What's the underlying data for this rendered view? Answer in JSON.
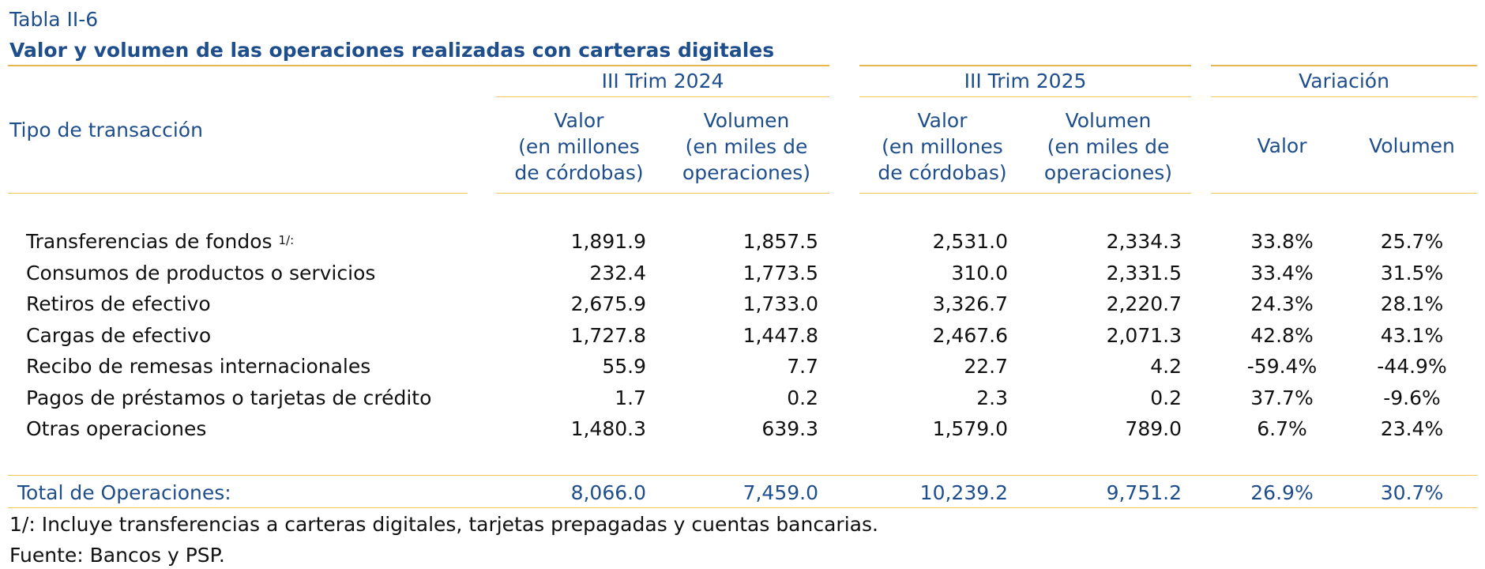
{
  "table": {
    "label": "Tabla II-6",
    "title": "Valor y volumen de las operaciones realizadas con carteras digitales",
    "row_header": "Tipo de transacción",
    "groups": [
      "III Trim 2024",
      "III Trim 2025",
      "Variación"
    ],
    "col_headers": {
      "valor_long": [
        "Valor",
        "(en millones",
        "de córdobas)"
      ],
      "volumen_long": [
        "Volumen",
        "(en miles de",
        "operaciones)"
      ],
      "valor_short": "Valor",
      "volumen_short": "Volumen"
    },
    "rows": [
      {
        "label": "Transferencias de fondos",
        "note": "1/:",
        "v2024": "1,891.9",
        "q2024": "1,857.5",
        "v2025": "2,531.0",
        "q2025": "2,334.3",
        "var_v": "33.8%",
        "var_q": "25.7%"
      },
      {
        "label": "Consumos de productos o servicios",
        "note": "",
        "v2024": "232.4",
        "q2024": "1,773.5",
        "v2025": "310.0",
        "q2025": "2,331.5",
        "var_v": "33.4%",
        "var_q": "31.5%"
      },
      {
        "label": "Retiros de efectivo",
        "note": "",
        "v2024": "2,675.9",
        "q2024": "1,733.0",
        "v2025": "3,326.7",
        "q2025": "2,220.7",
        "var_v": "24.3%",
        "var_q": "28.1%"
      },
      {
        "label": "Cargas de efectivo",
        "note": "",
        "v2024": "1,727.8",
        "q2024": "1,447.8",
        "v2025": "2,467.6",
        "q2025": "2,071.3",
        "var_v": "42.8%",
        "var_q": "43.1%"
      },
      {
        "label": "Recibo de remesas internacionales",
        "note": "",
        "v2024": "55.9",
        "q2024": "7.7",
        "v2025": "22.7",
        "q2025": "4.2",
        "var_v": "-59.4%",
        "var_q": "-44.9%"
      },
      {
        "label": "Pagos de préstamos o tarjetas de crédito",
        "note": "",
        "v2024": "1.7",
        "q2024": "0.2",
        "v2025": "2.3",
        "q2025": "0.2",
        "var_v": "37.7%",
        "var_q": "-9.6%"
      },
      {
        "label": "Otras operaciones",
        "note": "",
        "v2024": "1,480.3",
        "q2024": "639.3",
        "v2025": "1,579.0",
        "q2025": "789.0",
        "var_v": "6.7%",
        "var_q": "23.4%"
      }
    ],
    "total": {
      "label": "Total de Operaciones:",
      "v2024": "8,066.0",
      "q2024": "7,459.0",
      "v2025": "10,239.2",
      "q2025": "9,751.2",
      "var_v": "26.9%",
      "var_q": "30.7%"
    },
    "footnote": "1/: Incluye transferencias a carteras digitales, tarjetas prepagadas y cuentas bancarias.",
    "source": "Fuente: Bancos y PSP."
  }
}
